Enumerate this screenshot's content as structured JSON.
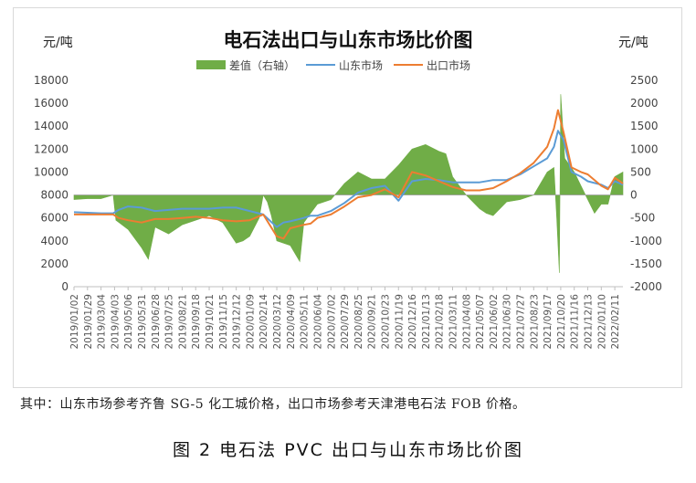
{
  "chart_data": {
    "type": "line",
    "title": "电石法出口与山东市场比价图",
    "left_unit": "元/吨",
    "right_unit": "元/吨",
    "left_ylim": [
      0,
      18000
    ],
    "left_ticks": [
      0,
      2000,
      4000,
      6000,
      8000,
      10000,
      12000,
      14000,
      16000,
      18000
    ],
    "right_ylim": [
      -2000,
      2500
    ],
    "right_ticks": [
      -2000,
      -1500,
      -1000,
      -500,
      0,
      500,
      1000,
      1500,
      2000,
      2500
    ],
    "grid": false,
    "legend_position": "top",
    "x_tick_labels": [
      "2019/01/02",
      "2019/01/29",
      "2019/03/04",
      "2019/04/03",
      "2019/05/06",
      "2019/05/31",
      "2019/06/28",
      "2019/07/25",
      "2019/08/21",
      "2019/09/18",
      "2019/10/21",
      "2019/11/15",
      "2019/12/12",
      "2020/01/09",
      "2020/02/14",
      "2020/03/12",
      "2020/04/09",
      "2020/05/11",
      "2020/06/04",
      "2020/07/02",
      "2020/07/29",
      "2020/08/25",
      "2020/09/21",
      "2020/10/23",
      "2020/11/19",
      "2020/12/16",
      "2021/01/13",
      "2021/02/18",
      "2021/03/11",
      "2021/04/08",
      "2021/05/07",
      "2021/06/02",
      "2021/06/30",
      "2021/07/27",
      "2021/08/23",
      "2021/09/17",
      "2021/10/20",
      "2021/11/16",
      "2021/12/13",
      "2022/01/10",
      "2022/02/11"
    ],
    "series": [
      {
        "name": "差值（右轴）",
        "type": "area",
        "axis": "right",
        "color": "#70ad47",
        "x": [
          0,
          1,
          2,
          2.9,
          3.1,
          4,
          5,
          5.5,
          6,
          7,
          8,
          9,
          10,
          11,
          12,
          12.5,
          13,
          13.7,
          14,
          14.3,
          14.6,
          15,
          16,
          16.7,
          17,
          17.5,
          18,
          19,
          20,
          21,
          22,
          23,
          24,
          25,
          26,
          27,
          27.5,
          28,
          29,
          30,
          30.5,
          31,
          32,
          33,
          34,
          35,
          35.5,
          35.7,
          35.9,
          36,
          36.3,
          37,
          38,
          38.5,
          39,
          39.5,
          40,
          40.6
        ],
        "values": [
          -100,
          -80,
          -80,
          0,
          -550,
          -750,
          -1150,
          -1400,
          -700,
          -850,
          -650,
          -550,
          -450,
          -600,
          -1050,
          -1000,
          -900,
          -500,
          0,
          -150,
          -450,
          -1000,
          -1100,
          -1450,
          -600,
          -400,
          -200,
          -100,
          250,
          500,
          350,
          350,
          650,
          1000,
          1100,
          950,
          900,
          400,
          0,
          -300,
          -400,
          -450,
          -150,
          -100,
          0,
          500,
          600,
          -500,
          -1700,
          2200,
          800,
          500,
          -100,
          -400,
          -200,
          -200,
          400,
          500
        ]
      },
      {
        "name": "山东市场",
        "type": "line",
        "axis": "left",
        "color": "#5b9bd5",
        "x": [
          0,
          2,
          2.9,
          3.3,
          4,
          5,
          6,
          7,
          8,
          9,
          10,
          11,
          12,
          13,
          14,
          15,
          15.5,
          16,
          17,
          17.5,
          18,
          19,
          20,
          21,
          22,
          23,
          24,
          25,
          26,
          27,
          28,
          29,
          30,
          31,
          32,
          33,
          34,
          35,
          35.5,
          35.8,
          36.2,
          36.8,
          37.5,
          38,
          39,
          39.5,
          40,
          40.6
        ],
        "values": [
          6500,
          6400,
          6400,
          6700,
          7000,
          6900,
          6600,
          6700,
          6800,
          6800,
          6800,
          6900,
          6900,
          6600,
          6300,
          5200,
          5600,
          5700,
          6000,
          6200,
          6200,
          6600,
          7300,
          8200,
          8600,
          8800,
          7500,
          9200,
          9400,
          9300,
          9100,
          9100,
          9100,
          9300,
          9300,
          9800,
          10500,
          11200,
          12200,
          13600,
          12800,
          10000,
          9600,
          9200,
          8900,
          8600,
          9200,
          8900
        ]
      },
      {
        "name": "出口市场",
        "type": "line",
        "axis": "left",
        "color": "#ed7d31",
        "x": [
          0,
          2,
          2.9,
          3.3,
          4,
          5,
          6,
          7,
          8,
          9,
          10,
          11,
          12,
          13,
          14,
          15,
          15.5,
          16,
          17,
          17.5,
          18,
          19,
          20,
          21,
          22,
          23,
          24,
          25,
          26,
          27,
          28,
          29,
          30,
          31,
          32,
          33,
          34,
          35,
          35.5,
          35.8,
          36.2,
          36.8,
          37.5,
          38,
          39,
          39.5,
          40,
          40.6
        ],
        "values": [
          6300,
          6300,
          6300,
          6000,
          5800,
          5600,
          5900,
          5900,
          6000,
          6100,
          6000,
          5800,
          5700,
          5800,
          6300,
          4400,
          4200,
          5100,
          5400,
          5500,
          6000,
          6300,
          7000,
          7800,
          8000,
          8500,
          7800,
          10000,
          9700,
          9200,
          8700,
          8400,
          8400,
          8600,
          9200,
          9900,
          10800,
          12200,
          13800,
          15400,
          13500,
          10400,
          10000,
          9800,
          8800,
          8500,
          9500,
          9000
        ]
      }
    ]
  },
  "footnote": "其中：山东市场参考齐鲁 SG-5 化工城价格，出口市场参考天津港电石法 FOB 价格。",
  "caption": "图 2  电石法 PVC 出口与山东市场比价图"
}
